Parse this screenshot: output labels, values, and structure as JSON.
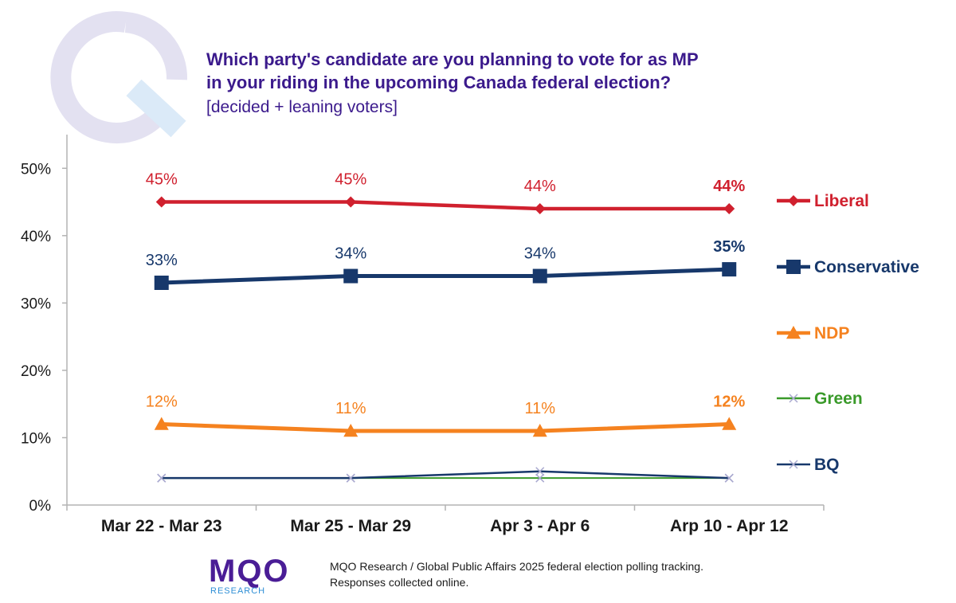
{
  "title_lines": [
    "Which party's candidate are you planning to vote for as MP",
    "in your riding in the upcoming Canada federal election?"
  ],
  "subtitle": "[decided + leaning voters]",
  "chart_data": {
    "type": "line",
    "categories": [
      "Mar 22 - Mar 23",
      "Mar 25 - Mar 29",
      "Apr 3 - Apr 6",
      "Arp 10 - Apr 12"
    ],
    "ylim": [
      0,
      55
    ],
    "yticks": [
      "0%",
      "10%",
      "20%",
      "30%",
      "40%",
      "50%"
    ],
    "ytick_values": [
      0,
      10,
      20,
      30,
      40,
      50
    ],
    "grid": false,
    "legend_placement": "right",
    "series": [
      {
        "name": "Liberal",
        "values": [
          45,
          45,
          44,
          44
        ],
        "color": "#d0202e",
        "marker": "diamond",
        "labels": [
          "45%",
          "45%",
          "44%",
          "44%"
        ]
      },
      {
        "name": "Conservative",
        "values": [
          33,
          34,
          34,
          35
        ],
        "color": "#17386b",
        "marker": "square",
        "labels": [
          "33%",
          "34%",
          "34%",
          "35%"
        ]
      },
      {
        "name": "NDP",
        "values": [
          12,
          11,
          11,
          12
        ],
        "color": "#f5821f",
        "marker": "triangle",
        "labels": [
          "12%",
          "11%",
          "11%",
          "12%"
        ]
      },
      {
        "name": "Green",
        "values": [
          4,
          4,
          4,
          4
        ],
        "color": "#3a9a2a",
        "marker": "x",
        "labels": []
      },
      {
        "name": "BQ",
        "values": [
          4,
          4,
          5,
          4
        ],
        "color": "#17386b",
        "marker": "x",
        "labels": []
      }
    ]
  },
  "logo": {
    "word": "MQO",
    "sub": "RESEARCH",
    "color": "#4a1d96",
    "accent": "#2f8fd6"
  },
  "footer_lines": [
    "MQO Research / Global Public Affairs 2025 federal election polling tracking.",
    "Responses collected online."
  ],
  "watermark_color": "#dedcef"
}
